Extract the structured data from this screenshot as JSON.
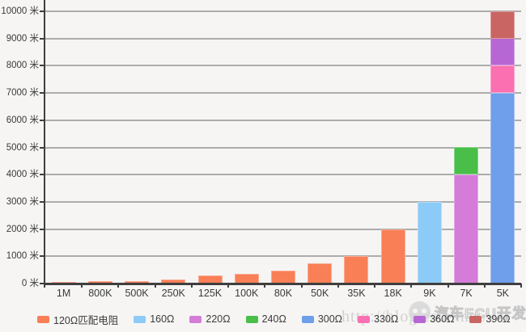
{
  "colors": {
    "background": "#F6F5F4",
    "axis": "#3F3F3F",
    "gridline": "#ACACAC",
    "label_text": "#3A3A3A",
    "watermark_gray": "#C9C9C9"
  },
  "watermark": {
    "url_text": "http://blog.csdn.net/",
    "brand_text": "汽车ECU开发",
    "logo_name": "csdn-avatar-logo"
  },
  "chart_data": {
    "type": "bar",
    "stacked": true,
    "grid": true,
    "legend_position": "bottom",
    "title": "",
    "xlabel": "",
    "ylabel": "",
    "ylim": [
      0,
      10000
    ],
    "ytick_step": 1000,
    "ytick_unit": "米",
    "ytick_labels": [
      "0 米",
      "1000 米",
      "2000 米",
      "3000 米",
      "4000 米",
      "5000 米",
      "6000 米",
      "7000 米",
      "8000 米",
      "9000 米",
      "10000 米"
    ],
    "categories": [
      "1M",
      "800K",
      "500K",
      "250K",
      "125K",
      "100K",
      "80K",
      "50K",
      "35K",
      "18K",
      "9K",
      "7K",
      "5K"
    ],
    "series": [
      {
        "name": "120Ω匹配电阻",
        "color": "#F97F57",
        "values": [
          40,
          80,
          100,
          150,
          300,
          360,
          480,
          750,
          1000,
          2000,
          0,
          0,
          0
        ]
      },
      {
        "name": "160Ω",
        "color": "#8CCBF7",
        "values": [
          0,
          0,
          0,
          0,
          0,
          0,
          0,
          0,
          0,
          0,
          3000,
          0,
          0
        ]
      },
      {
        "name": "220Ω",
        "color": "#D47CD8",
        "values": [
          0,
          0,
          0,
          0,
          0,
          0,
          0,
          0,
          0,
          0,
          0,
          4000,
          0
        ]
      },
      {
        "name": "240Ω",
        "color": "#49BF49",
        "values": [
          0,
          0,
          0,
          0,
          0,
          0,
          0,
          0,
          0,
          0,
          0,
          1000,
          0
        ]
      },
      {
        "name": "300Ω",
        "color": "#6F9EEA",
        "values": [
          0,
          0,
          0,
          0,
          0,
          0,
          0,
          0,
          0,
          0,
          0,
          0,
          7000
        ]
      },
      {
        "name": "330Ω",
        "color": "#FA70B0",
        "values": [
          0,
          0,
          0,
          0,
          0,
          0,
          0,
          0,
          0,
          0,
          0,
          0,
          1000
        ]
      },
      {
        "name": "360Ω",
        "color": "#B767D4",
        "values": [
          0,
          0,
          0,
          0,
          0,
          0,
          0,
          0,
          0,
          0,
          0,
          0,
          1000
        ]
      },
      {
        "name": "390Ω",
        "color": "#C96663",
        "values": [
          0,
          0,
          0,
          0,
          0,
          0,
          0,
          0,
          0,
          0,
          0,
          0,
          1000
        ]
      }
    ]
  }
}
